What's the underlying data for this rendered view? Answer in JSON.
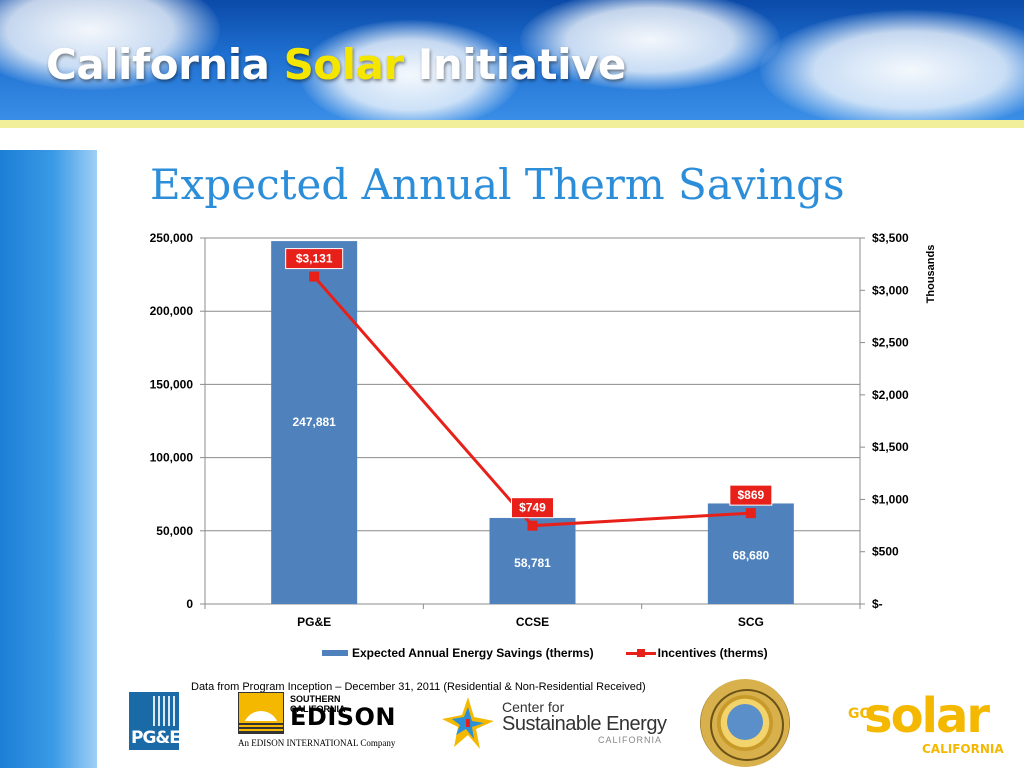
{
  "header": {
    "title_part1": "California ",
    "title_accent": "Solar",
    "title_part2": " Initiative"
  },
  "slide_title": "Expected Annual Therm Savings",
  "chart_data": {
    "type": "bar",
    "categories": [
      "PG&E",
      "CCSE",
      "SCG"
    ],
    "series": [
      {
        "name": "Expected Annual Energy Savings (therms)",
        "type": "bar",
        "axis": "left",
        "color": "#4f81bd",
        "values": [
          247881,
          58781,
          68680
        ],
        "labels": [
          "247,881",
          "58,781",
          "68,680"
        ]
      },
      {
        "name": "Incentives (therms)",
        "type": "line",
        "axis": "right",
        "color": "#e8201a",
        "values": [
          3131,
          749,
          869
        ],
        "labels": [
          "$3,131",
          "$749",
          "$869"
        ]
      }
    ],
    "left_axis": {
      "range": [
        0,
        250000
      ],
      "ticks": [
        0,
        50000,
        100000,
        150000,
        200000,
        250000
      ],
      "tick_labels": [
        "0",
        "50,000",
        "100,000",
        "150,000",
        "200,000",
        "250,000"
      ]
    },
    "right_axis": {
      "range": [
        0,
        3500
      ],
      "ticks": [
        0,
        500,
        1000,
        1500,
        2000,
        2500,
        3000,
        3500
      ],
      "tick_labels": [
        "$-",
        "$500",
        "$1,000",
        "$1,500",
        "$2,000",
        "$2,500",
        "$3,000",
        "$3,500"
      ],
      "unit_label": "Thousands"
    },
    "grid": "horizontal",
    "legend_position": "bottom"
  },
  "source_note": "Data from Program Inception – December 31, 2011 (Residential & Non-Residential Received)",
  "logos": {
    "pge": "PG&E",
    "sce_small": "SOUTHERN CALIFORNIA",
    "sce_big": "EDISON",
    "sce_tag": "An EDISON INTERNATIONAL Company",
    "cse_line1": "Center for",
    "cse_line2": "Sustainable Energy",
    "cse_line3": "CALIFORNIA",
    "gosolar_go": "GO",
    "gosolar_solar": "solar",
    "gosolar_cal": "CALIFORNIA"
  }
}
